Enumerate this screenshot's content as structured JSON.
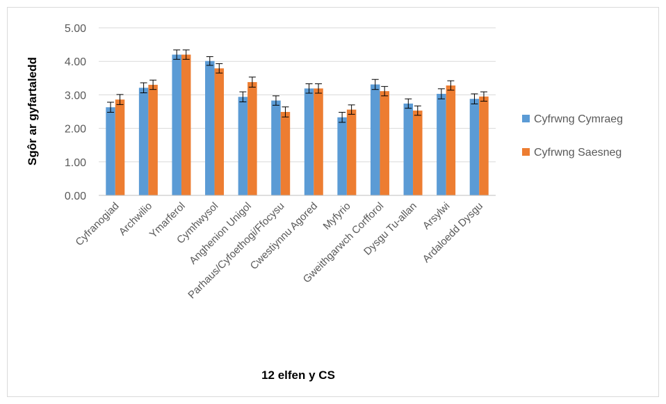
{
  "chart_data": {
    "type": "bar",
    "xlabel": "12 elfen y CS",
    "ylabel": "Sgôr ar gyfartaledd",
    "ylim": [
      0,
      5
    ],
    "yticks": [
      "0.00",
      "1.00",
      "2.00",
      "3.00",
      "4.00",
      "5.00"
    ],
    "grid": true,
    "legend_position": "right",
    "categories": [
      "Cyfranogiad",
      "Archwilio",
      "Ymarferol",
      "Cymhwysol",
      "Anghenion Unigol",
      "Parhaus/Cyfoethogi/Ffocysu",
      "Cwestiynnu Agored",
      "Myfyrio",
      "Gweithgarwch Corfforol",
      "Dysgu Tu-allan",
      "Arsylwi",
      "Ardaloedd Dysgu"
    ],
    "series": [
      {
        "name": "Cyfrwng Cymraeg",
        "color": "#5b9bd5",
        "values": [
          2.63,
          3.21,
          4.2,
          4.01,
          2.94,
          2.83,
          3.19,
          2.33,
          3.31,
          2.74,
          3.03,
          2.88
        ],
        "error": [
          0.15,
          0.15,
          0.14,
          0.13,
          0.15,
          0.14,
          0.14,
          0.15,
          0.15,
          0.14,
          0.15,
          0.15
        ]
      },
      {
        "name": "Cyfrwng Saesneg",
        "color": "#ed7d31",
        "values": [
          2.86,
          3.3,
          4.2,
          3.79,
          3.38,
          2.49,
          3.19,
          2.56,
          3.11,
          2.53,
          3.28,
          2.95
        ],
        "error": [
          0.15,
          0.14,
          0.14,
          0.14,
          0.15,
          0.15,
          0.14,
          0.14,
          0.14,
          0.14,
          0.14,
          0.14
        ]
      }
    ]
  }
}
